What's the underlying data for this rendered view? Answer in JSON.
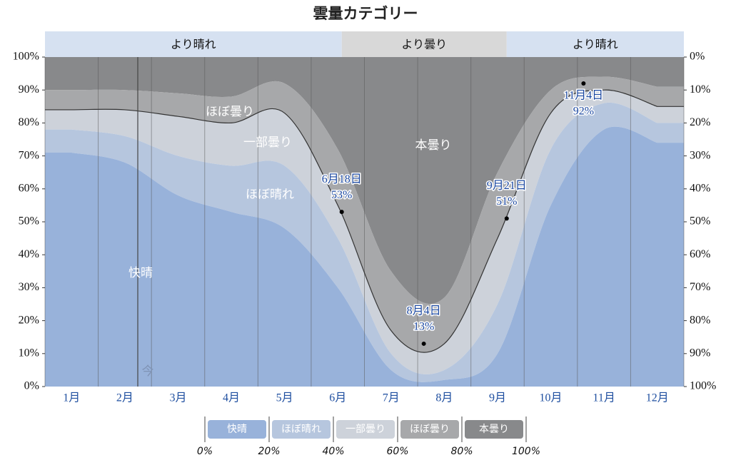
{
  "chart_data": {
    "type": "stacked_area",
    "title": "雲量カテゴリー",
    "categories": [
      "1月",
      "2月",
      "3月",
      "4月",
      "5月",
      "6月",
      "7月",
      "8月",
      "9月",
      "10月",
      "11月",
      "12月"
    ],
    "series": [
      {
        "name": "快晴",
        "color": "#98b2da",
        "values": [
          71,
          68,
          58,
          53,
          48,
          30,
          5,
          2,
          10,
          55,
          78,
          74
        ]
      },
      {
        "name": "ほぼ晴れ",
        "color": "#b6c6de",
        "values": [
          7,
          8,
          12,
          14,
          19,
          15,
          5,
          3,
          15,
          17,
          8,
          6
        ]
      },
      {
        "name": "一部曇り",
        "color": "#cdd2da",
        "values": [
          6,
          8,
          12,
          13,
          16,
          10,
          7,
          8,
          20,
          11,
          4,
          5
        ]
      },
      {
        "name": "ほぼ曇り",
        "color": "#a7a8aa",
        "values": [
          6,
          6,
          7,
          8,
          9,
          17,
          18,
          14,
          20,
          7,
          4,
          6
        ]
      },
      {
        "name": "本曇り",
        "color": "#88898b",
        "values": [
          10,
          10,
          11,
          12,
          8,
          28,
          65,
          73,
          35,
          10,
          6,
          9
        ]
      }
    ],
    "ylim": [
      0,
      100
    ],
    "yticks": [
      {
        "value": 0,
        "label": "0%"
      },
      {
        "value": 10,
        "label": "10%"
      },
      {
        "value": 20,
        "label": "20%"
      },
      {
        "value": 30,
        "label": "30%"
      },
      {
        "value": 40,
        "label": "40%"
      },
      {
        "value": 50,
        "label": "50%"
      },
      {
        "value": 60,
        "label": "60%"
      },
      {
        "value": 70,
        "label": "70%"
      },
      {
        "value": 80,
        "label": "80%"
      },
      {
        "value": 90,
        "label": "90%"
      },
      {
        "value": 100,
        "label": "100%"
      }
    ],
    "y2lim": [
      100,
      0
    ],
    "y2ticks": [
      {
        "value": 100,
        "label": "100%"
      },
      {
        "value": 90,
        "label": "90%"
      },
      {
        "value": 80,
        "label": "80%"
      },
      {
        "value": 70,
        "label": "70%"
      },
      {
        "value": 60,
        "label": "60%"
      },
      {
        "value": 50,
        "label": "50%"
      },
      {
        "value": 40,
        "label": "40%"
      },
      {
        "value": 30,
        "label": "30%"
      },
      {
        "value": 20,
        "label": "20%"
      },
      {
        "value": 10,
        "label": "10%"
      },
      {
        "value": 0,
        "label": "0%"
      }
    ],
    "annotations": [
      {
        "label": "6月18日",
        "value": 53,
        "value_label": "53%"
      },
      {
        "label": "8月4日",
        "value": 13,
        "value_label": "13%"
      },
      {
        "label": "9月21日",
        "value": 51,
        "value_label": "51%"
      },
      {
        "label": "11月4日",
        "value": 92,
        "value_label": "92%"
      }
    ],
    "top_bands": [
      {
        "label": "より晴れ",
        "color": "#d6e1f1"
      },
      {
        "label": "より曇り",
        "color": "#d8d8d8"
      },
      {
        "label": "より晴れ",
        "color": "#d6e1f1"
      }
    ],
    "now_label": "今",
    "legend_ticks": [
      {
        "value": 0,
        "label": "0%"
      },
      {
        "value": 20,
        "label": "20%"
      },
      {
        "value": 40,
        "label": "40%"
      },
      {
        "value": 60,
        "label": "60%"
      },
      {
        "value": 80,
        "label": "80%"
      },
      {
        "value": 100,
        "label": "100%"
      }
    ]
  }
}
